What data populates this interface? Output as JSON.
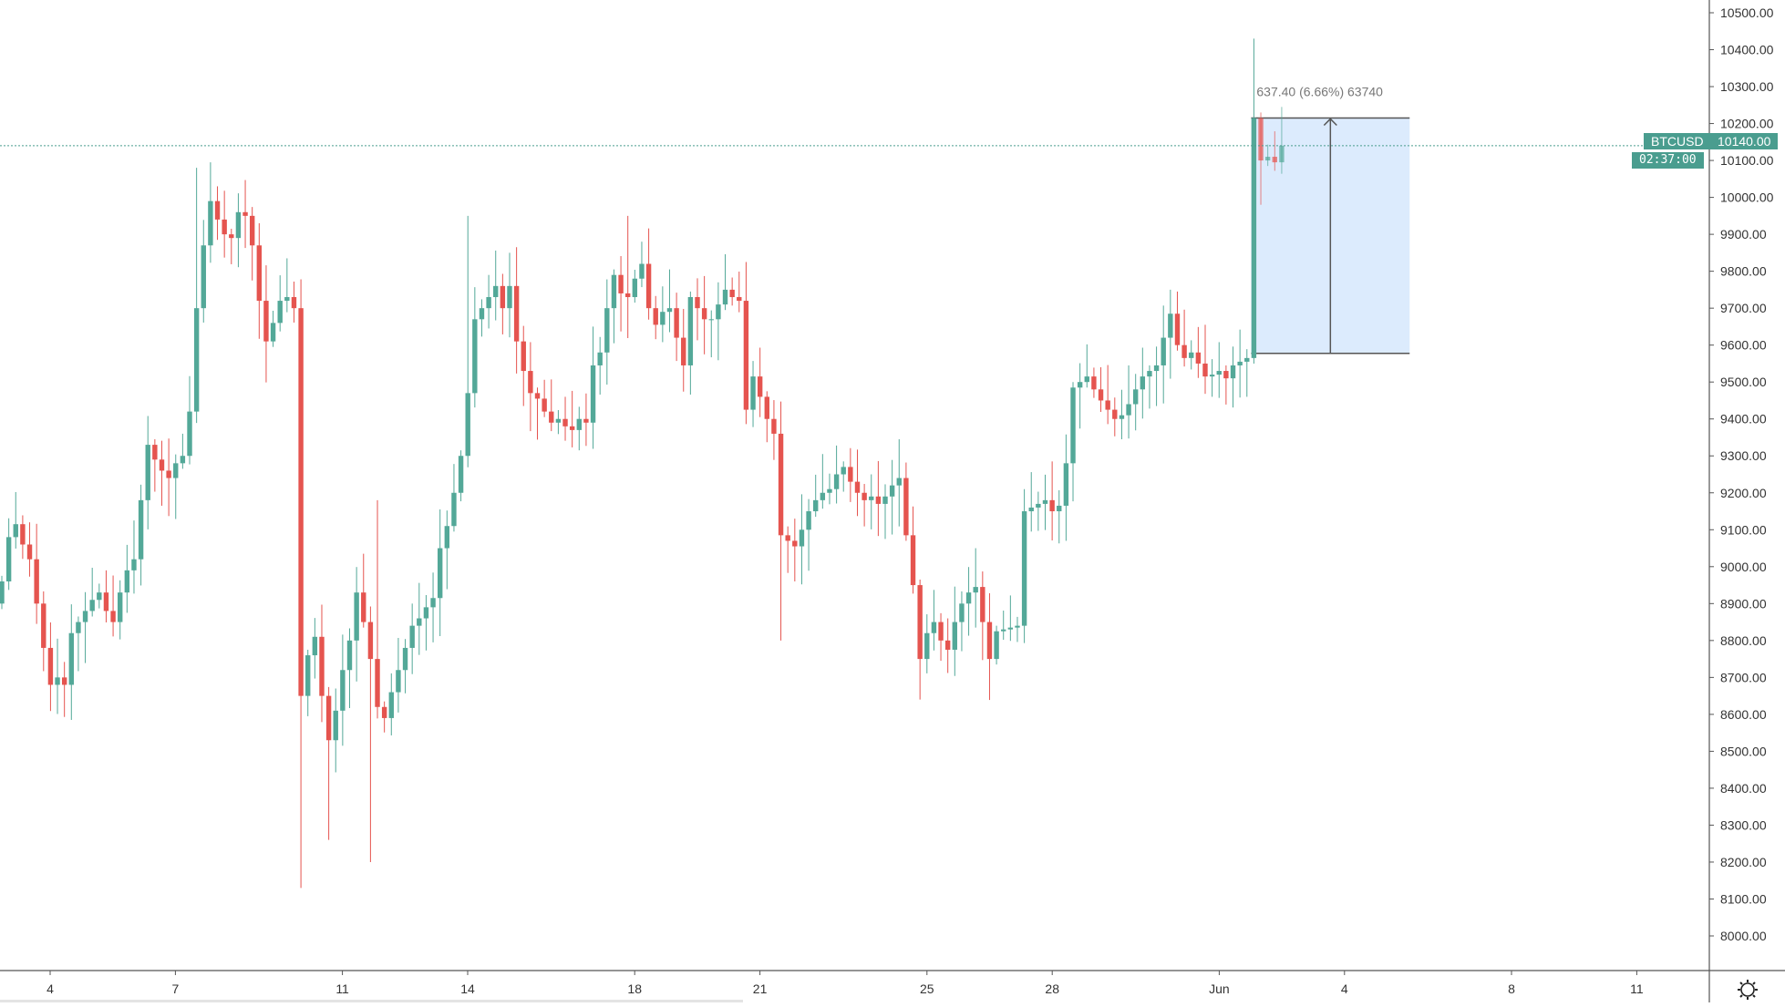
{
  "symbol_label": "BTCUSD",
  "last_price_label": "10140.00",
  "countdown": "02:37:00",
  "measure_label": "637.40 (6.66%) 63740",
  "colors": {
    "up": "#53a898",
    "down": "#e5544f",
    "accent": "#4a9d8f",
    "measure_fill": "#dcebfd"
  },
  "icons": {
    "settings": "gear-icon"
  },
  "chart_data": {
    "type": "candlestick",
    "interval_hours": 4,
    "ylim": [
      7950,
      10530
    ],
    "y_ticks": [
      "10500.00",
      "10400.00",
      "10300.00",
      "10200.00",
      "10100.00",
      "10000.00",
      "9900.00",
      "9800.00",
      "9700.00",
      "9600.00",
      "9500.00",
      "9400.00",
      "9300.00",
      "9200.00",
      "9100.00",
      "9000.00",
      "8900.00",
      "8800.00",
      "8700.00",
      "8600.00",
      "8500.00",
      "8400.00",
      "8300.00",
      "8200.00",
      "8100.00",
      "8000.00"
    ],
    "x_ticks": [
      {
        "label": "4",
        "day": 0
      },
      {
        "label": "7",
        "day": 3
      },
      {
        "label": "11",
        "day": 7
      },
      {
        "label": "14",
        "day": 10
      },
      {
        "label": "18",
        "day": 14
      },
      {
        "label": "21",
        "day": 17
      },
      {
        "label": "25",
        "day": 21
      },
      {
        "label": "28",
        "day": 24
      },
      {
        "label": "Jun",
        "day": 28
      },
      {
        "label": "4",
        "day": 31
      },
      {
        "label": "8",
        "day": 35
      },
      {
        "label": "11",
        "day": 38
      }
    ],
    "first_open": 8900,
    "close": [
      8960,
      9080,
      9115,
      9060,
      9020,
      8900,
      8780,
      8680,
      8700,
      8680,
      8820,
      8850,
      8880,
      8910,
      8930,
      8880,
      8850,
      8930,
      8990,
      9020,
      9180,
      9330,
      9290,
      9260,
      9240,
      9280,
      9300,
      9420,
      9700,
      9870,
      9990,
      9940,
      9900,
      9890,
      9960,
      9950,
      9870,
      9720,
      9610,
      9660,
      9720,
      9730,
      9700,
      8650,
      8760,
      8810,
      8650,
      8530,
      8610,
      8720,
      8800,
      8930,
      8850,
      8750,
      8620,
      8590,
      8660,
      8720,
      8780,
      8840,
      8860,
      8890,
      8915,
      9050,
      9110,
      9200,
      9300,
      9470,
      9670,
      9700,
      9730,
      9760,
      9700,
      9760,
      9610,
      9530,
      9470,
      9455,
      9420,
      9390,
      9400,
      9380,
      9370,
      9400,
      9390,
      9545,
      9580,
      9700,
      9790,
      9740,
      9730,
      9780,
      9820,
      9700,
      9655,
      9690,
      9700,
      9620,
      9545,
      9730,
      9700,
      9670,
      9670,
      9710,
      9750,
      9730,
      9720,
      9425,
      9515,
      9460,
      9400,
      9360,
      9085,
      9070,
      9055,
      9100,
      9150,
      9180,
      9200,
      9210,
      9250,
      9270,
      9230,
      9200,
      9180,
      9190,
      9170,
      9190,
      9220,
      9240,
      9085,
      8950,
      8750,
      8820,
      8850,
      8800,
      8775,
      8850,
      8900,
      8930,
      8945,
      8850,
      8750,
      8825,
      8830,
      8835,
      8840,
      9150,
      9160,
      9170,
      9180,
      9150,
      9165,
      9280,
      9485,
      9500,
      9515,
      9480,
      9450,
      9425,
      9400,
      9410,
      9440,
      9480,
      9515,
      9530,
      9545,
      9620,
      9685,
      9600,
      9565,
      9580,
      9550,
      9515,
      9520,
      9530,
      9510,
      9545,
      9555,
      9565,
      10215,
      10100,
      10110,
      10095,
      10140
    ],
    "extremes": [
      {
        "i": 28,
        "high": 10080
      },
      {
        "i": 31,
        "high": 10030
      },
      {
        "i": 43,
        "low": 8130
      },
      {
        "i": 47,
        "low": 8260
      },
      {
        "i": 53,
        "low": 8200
      },
      {
        "i": 54,
        "high": 9180
      },
      {
        "i": 67,
        "high": 9950
      },
      {
        "i": 73,
        "high": 9850
      },
      {
        "i": 90,
        "high": 9950
      },
      {
        "i": 112,
        "low": 8800
      },
      {
        "i": 132,
        "low": 8640
      },
      {
        "i": 168,
        "high": 9750
      },
      {
        "i": 180,
        "high": 10430,
        "low": 9550
      },
      {
        "i": 181,
        "high": 10230,
        "low": 9980
      }
    ],
    "measure": {
      "from_price": 9577.6,
      "to_price": 10215,
      "from_index": 180,
      "to_index": 202
    },
    "last_price": 10140
  }
}
